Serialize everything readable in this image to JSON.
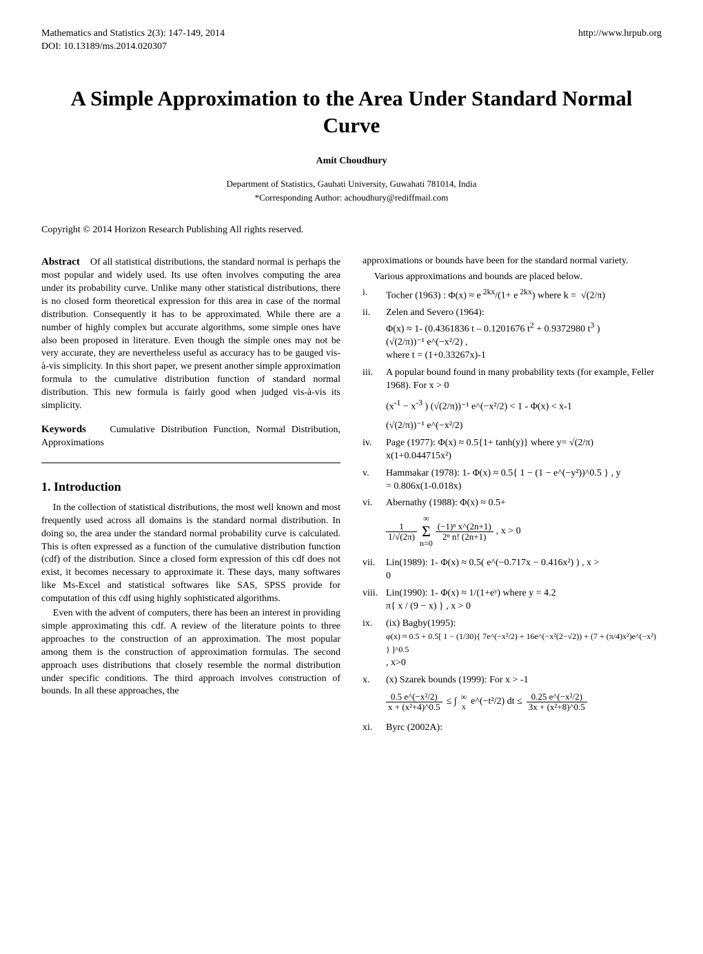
{
  "header": {
    "journal_line": "Mathematics and Statistics 2(3): 147-149, 2014",
    "doi_line": "DOI: 10.13189/ms.2014.020307",
    "url": "http://www.hrpub.org"
  },
  "title": "A Simple Approximation to the Area Under Standard Normal Curve",
  "author": "Amit Choudhury",
  "affiliation": "Department of Statistics, Gauhati University, Guwahati 781014, India",
  "corresponding": "*Corresponding Author: achoudhury@rediffmail.com",
  "copyright": "Copyright © 2014 Horizon Research Publishing All rights reserved.",
  "abstract_label": "Abstract",
  "abstract_text": "Of all statistical distributions, the standard normal is perhaps the most popular and widely used. Its use often involves computing the area under its probability curve. Unlike many other statistical distributions, there is no closed form theoretical expression for this area in case of the normal distribution. Consequently it has to be approximated. While there are a number of highly complex but accurate algorithms, some simple ones have also been proposed in literature. Even though the simple ones may not be very accurate, they are nevertheless useful as accuracy has to be gauged vis-à-vis simplicity. In this short paper, we present another simple approximation formula to the cumulative distribution function of standard normal distribution. This new formula is fairly good when judged vis-à-vis its simplicity.",
  "keywords_label": "Keywords",
  "keywords_text": "Cumulative Distribution Function, Normal Distribution, Approximations",
  "section1_heading": "1. Introduction",
  "intro_p1": "In the collection of statistical distributions, the most well known and most frequently used across all domains is the standard normal distribution. In doing so, the area under the standard normal probability curve is calculated. This is often expressed as a function of the cumulative distribution function (cdf) of the distribution. Since a closed form expression of this cdf does not exist, it becomes necessary to approximate it. These days, many softwares like Ms-Excel and statistical softwares like SAS, SPSS provide for computation of this cdf using highly sophisticated algorithms.",
  "intro_p2": "Even with the advent of computers, there has been an interest in providing simple approximating this cdf. A review of the literature points to three approaches to the construction of an approximation. The most popular among them is the construction of approximation formulas. The second approach uses distributions that closely resemble the normal distribution under specific conditions. The third approach involves construction of bounds. In all these approaches, the",
  "right_top1": "approximations or bounds have been for the standard normal variety.",
  "right_top2": "Various approximations and bounds are placed below.",
  "items": {
    "i": {
      "rn": "i.",
      "text_a": "Tocher (1963) : Φ(x) ≈ e",
      "sup_a": " 2kx",
      "text_b": "/(1+ e",
      "sup_b": " 2kx",
      "text_c": ") where k =",
      "tail": "√(2/π)"
    },
    "ii": {
      "rn": "ii.",
      "lead": "Zelen and Severo (1964):",
      "line2a": "Φ(x) ≈ 1- (0.4361836 t – 0.1201676 t",
      "line2b": " + 0.9372980 t",
      "line2c": " )",
      "line3": "(√(2/π))⁻¹ e^(−x²/2) ,",
      "line4": "where t = (1+0.33267x)-1"
    },
    "iii": {
      "rn": "iii.",
      "lead": "A popular bound found in many probability texts (for example, Feller 1968). For x > 0",
      "eq1a": "(x",
      "eq1b": " − x",
      "eq1c": " )  (√(2/π))⁻¹ e^(−x²/2)  < 1 - Φ(x) < x-1",
      "eq2": "(√(2/π))⁻¹ e^(−x²/2)"
    },
    "iv": {
      "rn": "iv.",
      "text": "Page (1977): Φ(x) ≈ 0.5{1+ tanh(y)} where y= √(2/π)",
      "line2": "x(1+0.044715x²)"
    },
    "v": {
      "rn": "v.",
      "text": "Hammakar (1978): 1- Φ(x) ≈  0.5{ 1 − (1 − e^(−y²))^0.5 } , y",
      "line2": "= 0.806x(1-0.018x)"
    },
    "vi": {
      "rn": "vi.",
      "lead": "Abernathy (1988): Φ(x) ≈ 0.5+",
      "sum_pref": "1/√(2π)",
      "sum_core": "Σ",
      "sum_low": "n=0",
      "sum_up": "∞",
      "sum_body_num": "(−1)ⁿ x^(2n+1)",
      "sum_body_den": "2ⁿ n! (2n+1)",
      "tail": " , x > 0"
    },
    "vii": {
      "rn": "vii.",
      "text": "Lin(1989): 1- Φ(x) ≈  0.5( e^(−0.717x − 0.416x²) ) , x >",
      "line2": "0"
    },
    "viii": {
      "rn": "viii.",
      "lead": "Lin(1990): 1- Φ(x) ≈ 1/(1+eʸ) where y = 4.2",
      "line2": "π{ x / (9 − x) }  , x > 0"
    },
    "ix": {
      "rn": "ix.",
      "lead": "(ix) Bagby(1995):",
      "eq": "φ(x) ≈ 0.5 + 0.5[ 1 − (1/30){ 7e^(−x²/2) + 16e^(−x²(2−√2)) + (7 + (π/4)x²)e^(−x²) } ]^0.5",
      "tail": ", x>0"
    },
    "x": {
      "rn": "x.",
      "lead": "(x) Szarek bounds (1999): For x > -1",
      "lnum": "0.5 e^(−x²/2)",
      "lden": "x + (x²+4)^0.5",
      "mid_a": "≤  ∫",
      "mid_low": "x",
      "mid_up": "∞",
      "mid_b": " e^(−t²/2) dt   ≤",
      "rnum": "0.25 e^(−x²/2)",
      "rden": "3x + (x²+8)^0.5"
    },
    "xi": {
      "rn": "xi.",
      "text": "Byrc (2002A):"
    }
  }
}
